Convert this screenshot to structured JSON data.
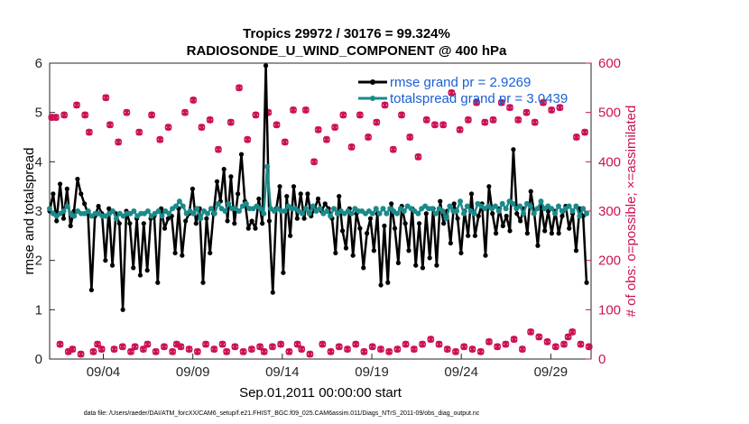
{
  "chart_data": {
    "type": "line",
    "title_line1": "Tropics 29972 / 30176 = 99.324%",
    "title_line2": "RADIOSONDE_U_WIND_COMPONENT @ 400 hPa",
    "xlabel": "Sep.01,2011 00:00:00 start",
    "ylabel_left": "rmse and totalspread",
    "ylabel_right": "# of obs: o=possible; ×=assimilated",
    "footnote": "data file: /Users/raeder/DAI/ATM_forcXX/CAM6_setup/f.e21.FHIST_BGC.f09_025.CAM6assim.011/Diags_NTrS_2011-09/obs_diag_output.nc",
    "xlim": [
      1,
      31.25
    ],
    "ylim_left": [
      0,
      6
    ],
    "ylim_right": [
      0,
      600
    ],
    "x_ticks": [
      4,
      9,
      14,
      19,
      24,
      29
    ],
    "x_tick_labels": [
      "09/04",
      "09/09",
      "09/14",
      "09/19",
      "09/24",
      "09/29"
    ],
    "y_ticks_left": [
      0,
      1,
      2,
      3,
      4,
      5,
      6
    ],
    "y_ticks_left_labels": [
      "0",
      "1",
      "2",
      "3",
      "4",
      "5",
      "6"
    ],
    "y_ticks_right": [
      0,
      100,
      200,
      300,
      400,
      500,
      600
    ],
    "y_ticks_right_labels": [
      "0",
      "100",
      "200",
      "300",
      "400",
      "500",
      "600"
    ],
    "legend": [
      "rmse grand pr = 2.9269",
      "totalspread grand pr = 3.0439"
    ],
    "colors": {
      "rmse": "#000000",
      "spread": "#1b8a8a",
      "obs": "#cc1155",
      "legend_text": "#1a5fd6"
    },
    "series": [
      {
        "name": "rmse",
        "values": [
          3.0,
          3.35,
          2.8,
          3.55,
          2.85,
          3.45,
          2.7,
          3.0,
          3.65,
          3.35,
          3.15,
          2.95,
          1.4,
          2.9,
          3.1,
          2.95,
          2.0,
          3.05,
          1.9,
          2.95,
          2.75,
          1.0,
          3.0,
          2.75,
          1.85,
          2.85,
          1.7,
          2.75,
          1.8,
          2.85,
          2.9,
          1.55,
          3.05,
          2.65,
          2.85,
          2.9,
          2.15,
          3.05,
          2.1,
          2.8,
          2.95,
          3.45,
          2.75,
          3.05,
          1.55,
          2.85,
          2.15,
          2.95,
          3.6,
          3.2,
          3.85,
          2.8,
          3.7,
          2.75,
          3.35,
          4.15,
          3.2,
          2.65,
          2.8,
          2.65,
          3.25,
          2.75,
          5.95,
          2.8,
          1.35,
          3.05,
          3.5,
          1.75,
          3.3,
          2.5,
          3.5,
          2.85,
          3.35,
          2.85,
          3.35,
          2.9,
          3.05,
          3.25,
          3.0,
          3.15,
          3.05,
          2.85,
          2.15,
          3.3,
          2.6,
          2.25,
          3.05,
          2.1,
          2.95,
          2.65,
          1.85,
          2.55,
          2.85,
          2.2,
          2.95,
          1.5,
          2.7,
          1.55,
          3.15,
          2.65,
          1.95,
          3.1,
          2.75,
          2.2,
          3.05,
          1.9,
          2.75,
          1.85,
          2.95,
          2.05,
          3.05,
          1.9,
          3.2,
          2.75,
          3.0,
          2.35,
          3.15,
          2.85,
          2.15,
          3.0,
          2.5,
          3.35,
          2.5,
          2.9,
          3.15,
          2.1,
          3.5,
          2.95,
          2.55,
          3.05,
          2.7,
          2.9,
          2.6,
          4.25,
          2.95,
          2.8,
          3.05,
          2.55,
          3.4,
          2.95,
          2.3,
          3.1,
          2.6,
          3.0,
          2.55,
          3.0,
          2.55,
          2.9,
          3.1,
          2.65,
          2.95,
          2.2,
          3.05,
          2.9,
          1.55
        ]
      },
      {
        "name": "totalspread",
        "values": [
          3.05,
          2.95,
          2.9,
          2.95,
          3.0,
          3.1,
          2.95,
          2.9,
          3.0,
          2.95,
          2.95,
          3.0,
          2.9,
          2.95,
          2.95,
          2.9,
          2.9,
          2.95,
          3.0,
          2.85,
          2.95,
          2.9,
          2.95,
          2.95,
          3.0,
          2.9,
          2.95,
          2.95,
          3.0,
          2.9,
          2.95,
          3.0,
          2.9,
          3.0,
          2.95,
          3.05,
          3.1,
          3.2,
          3.1,
          2.95,
          3.0,
          2.95,
          3.05,
          2.85,
          3.0,
          2.95,
          3.05,
          2.95,
          3.15,
          3.05,
          3.0,
          3.15,
          3.05,
          3.05,
          3.0,
          3.1,
          3.15,
          3.05,
          3.05,
          3.1,
          3.05,
          2.95,
          3.9,
          3.05,
          3.0,
          3.05,
          3.0,
          3.0,
          3.1,
          3.05,
          3.05,
          3.0,
          2.95,
          3.05,
          2.95,
          3.1,
          3.0,
          3.05,
          2.95,
          3.0,
          2.9,
          3.05,
          2.95,
          3.0,
          2.95,
          3.0,
          2.95,
          3.05,
          3.0,
          3.0,
          2.95,
          3.0,
          2.95,
          3.05,
          2.95,
          3.05,
          2.95,
          3.05,
          3.0,
          2.95,
          3.05,
          3.0,
          3.1,
          3.05,
          3.0,
          2.95,
          3.05,
          3.1,
          3.05,
          3.05,
          2.95,
          3.05,
          3.0,
          2.85,
          3.1,
          3.0,
          3.0,
          3.2,
          2.95,
          3.1,
          3.0,
          2.95,
          3.15,
          3.1,
          3.05,
          3.1,
          3.05,
          3.1,
          3.0,
          3.15,
          3.05,
          3.2,
          3.15,
          3.05,
          3.1,
          2.95,
          3.15,
          3.1,
          2.95,
          3.05,
          3.2,
          3.05,
          3.1,
          3.05,
          2.95,
          3.1,
          3.0,
          3.05,
          3.1,
          3.0,
          3.1,
          2.9,
          3.05,
          2.95
        ]
      },
      {
        "name": "obs_possible",
        "values": [
          490,
          490,
          30,
          495,
          15,
          20,
          515,
          10,
          495,
          460,
          15,
          30,
          20,
          530,
          475,
          20,
          440,
          25,
          500,
          15,
          25,
          460,
          20,
          30,
          495,
          15,
          445,
          25,
          470,
          15,
          30,
          25,
          500,
          20,
          525,
          15,
          470,
          30,
          485,
          20,
          425,
          30,
          15,
          480,
          25,
          550,
          15,
          445,
          20,
          495,
          25,
          15,
          500,
          25,
          475,
          30,
          440,
          15,
          505,
          30,
          20,
          505,
          10,
          400,
          465,
          30,
          445,
          15,
          470,
          25,
          495,
          20,
          430,
          30,
          495,
          15,
          450,
          25,
          480,
          20,
          515,
          15,
          425,
          20,
          495,
          30,
          450,
          20,
          410,
          30,
          485,
          40,
          475,
          30,
          475,
          20,
          540,
          15,
          465,
          25,
          485,
          20,
          520,
          15,
          480,
          35,
          485,
          25,
          520,
          30,
          510,
          40,
          485,
          20,
          500,
          55,
          480,
          45,
          520,
          35,
          505,
          25,
          510,
          30,
          45,
          55,
          450,
          30,
          460,
          25
        ]
      },
      {
        "name": "obs_assimilated",
        "values": [
          490,
          490,
          30,
          495,
          15,
          20,
          515,
          10,
          495,
          460,
          15,
          30,
          20,
          530,
          475,
          20,
          440,
          25,
          500,
          15,
          25,
          460,
          20,
          30,
          495,
          15,
          445,
          25,
          470,
          15,
          30,
          25,
          500,
          20,
          525,
          15,
          470,
          30,
          485,
          20,
          425,
          30,
          15,
          480,
          25,
          550,
          15,
          445,
          20,
          495,
          25,
          15,
          500,
          25,
          475,
          30,
          440,
          15,
          505,
          30,
          20,
          505,
          10,
          400,
          465,
          30,
          445,
          15,
          470,
          25,
          495,
          20,
          430,
          30,
          495,
          15,
          450,
          25,
          480,
          20,
          515,
          15,
          425,
          20,
          495,
          30,
          450,
          20,
          410,
          30,
          485,
          40,
          475,
          30,
          475,
          20,
          540,
          15,
          465,
          25,
          485,
          20,
          520,
          15,
          480,
          35,
          485,
          25,
          520,
          30,
          510,
          40,
          485,
          20,
          500,
          55,
          480,
          45,
          520,
          35,
          505,
          25,
          510,
          30,
          45,
          55,
          450,
          30,
          460,
          25
        ]
      }
    ]
  }
}
